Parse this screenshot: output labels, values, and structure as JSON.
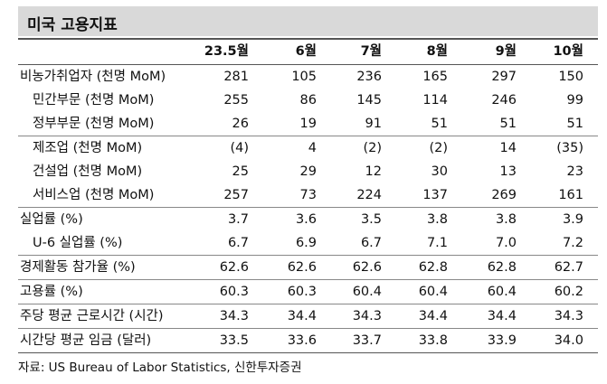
{
  "header": {
    "title": "미국 고용지표"
  },
  "table": {
    "columns": [
      "23.5월",
      "6월",
      "7월",
      "8월",
      "9월",
      "10월"
    ],
    "rows": [
      {
        "label": "비농가취업자 (천명 MoM)",
        "values": [
          "281",
          "105",
          "236",
          "165",
          "297",
          "150"
        ]
      },
      {
        "label": "민간부문 (천명 MoM)",
        "values": [
          "255",
          "86",
          "145",
          "114",
          "246",
          "99"
        ]
      },
      {
        "label": "정부부문 (천명 MoM)",
        "values": [
          "26",
          "19",
          "91",
          "51",
          "51",
          "51"
        ]
      },
      {
        "label": "제조업 (천명 MoM)",
        "values": [
          "(4)",
          "4",
          "(2)",
          "(2)",
          "14",
          "(35)"
        ]
      },
      {
        "label": "건설업 (천명 MoM)",
        "values": [
          "25",
          "29",
          "12",
          "30",
          "13",
          "23"
        ]
      },
      {
        "label": "서비스업 (천명 MoM)",
        "values": [
          "257",
          "73",
          "224",
          "137",
          "269",
          "161"
        ]
      },
      {
        "label": "실업률 (%)",
        "values": [
          "3.7",
          "3.6",
          "3.5",
          "3.8",
          "3.8",
          "3.9"
        ]
      },
      {
        "label": "U-6 실업률 (%)",
        "values": [
          "6.7",
          "6.9",
          "6.7",
          "7.1",
          "7.0",
          "7.2"
        ]
      },
      {
        "label": "경제활동 참가율 (%)",
        "values": [
          "62.6",
          "62.6",
          "62.6",
          "62.8",
          "62.8",
          "62.7"
        ]
      },
      {
        "label": "고용률 (%)",
        "values": [
          "60.3",
          "60.3",
          "60.4",
          "60.4",
          "60.4",
          "60.2"
        ]
      },
      {
        "label": "주당 평균 근로시간 (시간)",
        "values": [
          "34.3",
          "34.4",
          "34.3",
          "34.4",
          "34.4",
          "34.3"
        ]
      },
      {
        "label": "시간당 평균 임금 (달러)",
        "values": [
          "33.5",
          "33.6",
          "33.7",
          "33.8",
          "33.9",
          "34.0"
        ]
      }
    ]
  },
  "source": "자료: US Bureau of Labor Statistics, 신한투자증권"
}
